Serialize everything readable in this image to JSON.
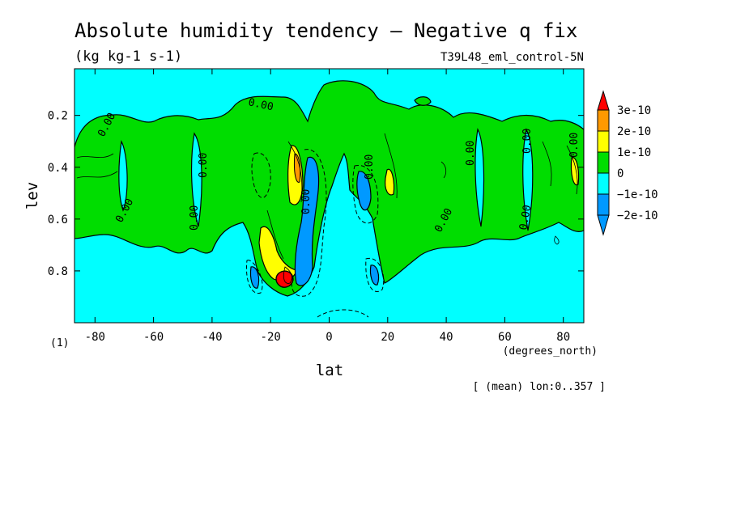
{
  "chart_data": {
    "type": "heatmap",
    "title": "Absolute humidity tendency — Negative q fix",
    "subtitle": "(kg kg-1 s-1)",
    "run_label": "T39L48_eml_control-5N",
    "xlabel": "lat",
    "x_units": "(degrees_north)",
    "ylabel": "lev",
    "y_units": "(1)",
    "footnote": "[ (mean) lon:0..357 ]",
    "xlim": [
      -87,
      87
    ],
    "ylim": [
      1.0,
      0.02
    ],
    "y_inverted": true,
    "x_ticks": [
      "-80",
      "-60",
      "-40",
      "-20",
      "0",
      "20",
      "40",
      "60",
      "80"
    ],
    "x_tick_values": [
      -80,
      -60,
      -40,
      -20,
      0,
      20,
      40,
      60,
      80
    ],
    "y_ticks": [
      "0.2",
      "0.4",
      "0.6",
      "0.8"
    ],
    "y_tick_values": [
      0.2,
      0.4,
      0.6,
      0.8
    ],
    "contour_label": "0.00",
    "colorbar": {
      "labels": [
        "3e-10",
        "2e-10",
        "1e-10",
        "0",
        "−1e-10",
        "−2e-10"
      ],
      "colors": [
        "#ff0000",
        "#ff9900",
        "#ffff00",
        "#00dd00",
        "#00ffff",
        "#0099ff",
        "#0000ff"
      ]
    },
    "regions": [
      {
        "level": "0 to 1e-10",
        "color": "#00dd00",
        "description": "broad positive band from about 0.15 to 0.7 lev"
      },
      {
        "level": "1e-10 to 2e-10",
        "color": "#ffff00",
        "lat_range": [
          -22,
          -10
        ],
        "lev_range": [
          0.65,
          0.85
        ]
      },
      {
        "level": "1e-10 to 2e-10",
        "color": "#ffff00",
        "lat_range": [
          -14,
          -10
        ],
        "lev_range": [
          0.3,
          0.52
        ]
      },
      {
        "level": "> 3e-10",
        "color": "#ff0000",
        "lat": -15,
        "lev": 0.82
      },
      {
        "level": "-1e-10 to -2e-10",
        "color": "#0099ff",
        "lat_range": [
          -10,
          -3
        ],
        "lev_range": [
          0.3,
          0.85
        ]
      },
      {
        "level": "-1e-10 to -2e-10",
        "color": "#0099ff",
        "lat_range": [
          10,
          15
        ],
        "lev_range": [
          0.38,
          0.55
        ]
      }
    ]
  }
}
